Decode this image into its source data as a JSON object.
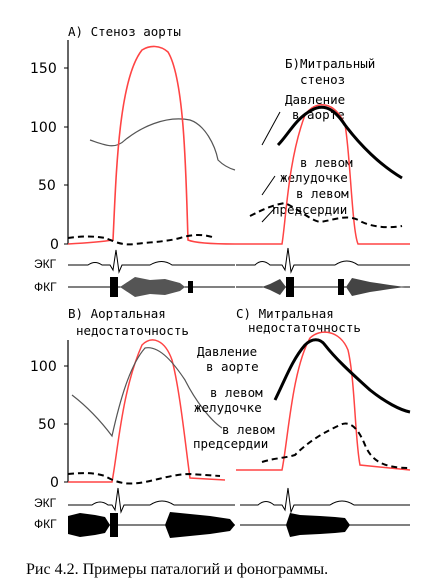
{
  "figure": {
    "caption": "Рис 4.2. Примеры паталогий и фонограммы."
  },
  "panels": [
    {
      "id": "A",
      "title": "А) Стеноз аорты",
      "y_ticks": [
        "150",
        "100",
        "50",
        "0"
      ],
      "trace_labels": [
        "ЭКГ",
        "ФКГ"
      ]
    },
    {
      "id": "B",
      "title_line1": "Б)Митральный",
      "title_line2": "стеноз",
      "annotations": [
        "Давление",
        "в аорте",
        "в левом",
        "желудочке",
        "в левом",
        "предсердии"
      ]
    },
    {
      "id": "C",
      "title_line1": "В) Аортальная",
      "title_line2": "недостаточность",
      "y_ticks": [
        "100",
        "50",
        "0"
      ],
      "trace_labels": [
        "ЭКГ",
        "ФКГ"
      ]
    },
    {
      "id": "D",
      "title_line1": "С) Митральная",
      "title_line2": "недостаточность",
      "annotations": [
        "Давление",
        "в аорте",
        "в левом",
        "желудочке",
        "в левом",
        "предсердии"
      ]
    }
  ],
  "colors": {
    "ventricle": "#ff4444",
    "aorta": "#000000",
    "atrium": "#000000"
  }
}
